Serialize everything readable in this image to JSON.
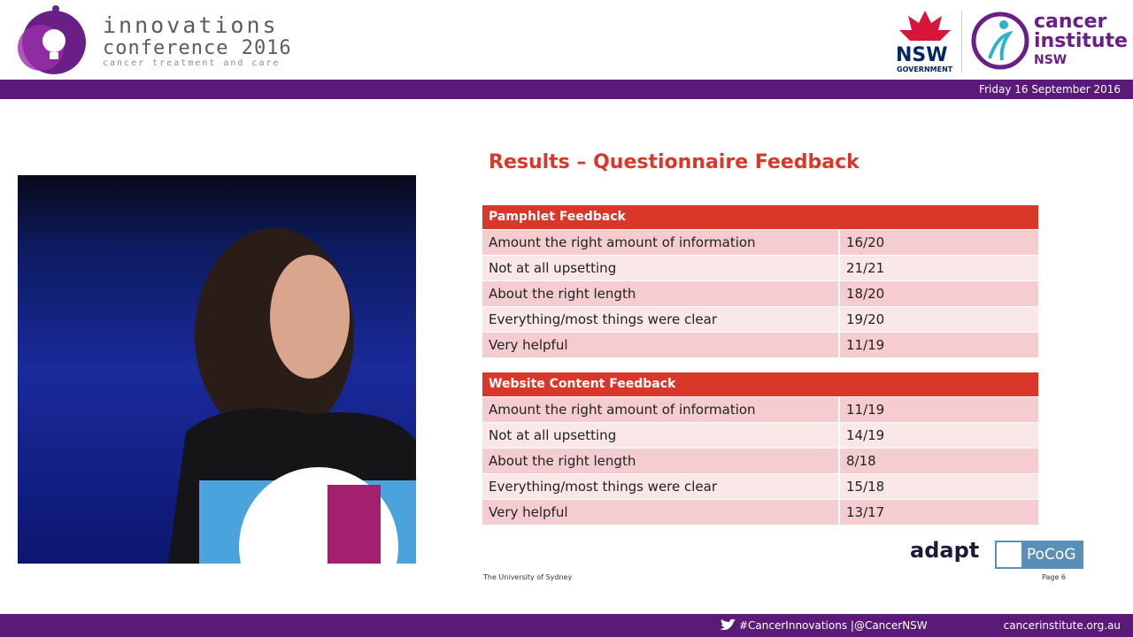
{
  "header": {
    "conference": {
      "line1": "innovations",
      "line2": "conference 2016",
      "line3": "cancer treatment and care"
    },
    "nsw": {
      "line1": "NSW",
      "line2": "GOVERNMENT"
    },
    "cancer_institute": {
      "line1": "cancer",
      "line2": "institute",
      "line3": "NSW"
    },
    "date": "Friday 16 September 2016"
  },
  "slide": {
    "title": "Results – Questionnaire Feedback",
    "tables": [
      {
        "header": "Pamphlet Feedback",
        "rows": [
          [
            "Amount the right amount of information",
            "16/20"
          ],
          [
            "Not at all upsetting",
            "21/21"
          ],
          [
            "About the right length",
            "18/20"
          ],
          [
            "Everything/most things were clear",
            "19/20"
          ],
          [
            "Very helpful",
            "11/19"
          ]
        ]
      },
      {
        "header": "Website Content Feedback",
        "rows": [
          [
            "Amount the right amount of information",
            "11/19"
          ],
          [
            "Not at all upsetting",
            "14/19"
          ],
          [
            "About the right length",
            "8/18"
          ],
          [
            "Everything/most things were clear",
            "15/18"
          ],
          [
            "Very helpful",
            "13/17"
          ]
        ]
      }
    ],
    "affiliation": "The University of Sydney",
    "page": "Page 6",
    "logos": [
      "adapt",
      "PoCoG"
    ]
  },
  "footer": {
    "social": "#CancerInnovations |@CancerNSW",
    "website": "cancerinstitute.org.au"
  }
}
